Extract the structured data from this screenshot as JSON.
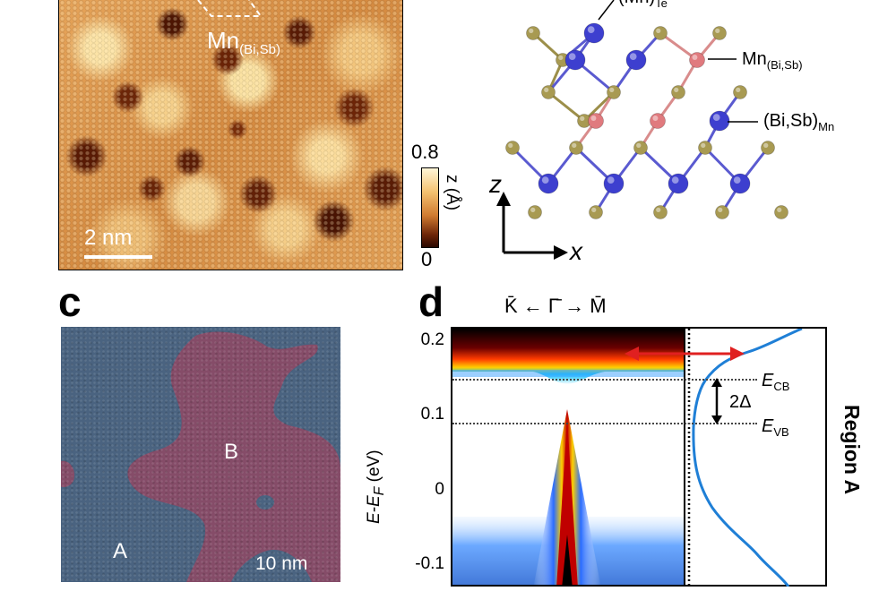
{
  "panel_b": {
    "defect_label": "Mn",
    "defect_label_sub": "(Bi,Sb)",
    "scale_bar": "2 nm",
    "colorbar_max": "0.8",
    "colorbar_min": "0",
    "colorbar_label": "z (Å)"
  },
  "crystal": {
    "label_top": "(Mn)",
    "label_top_sub": "Te",
    "label_mn": "Mn",
    "label_mn_sub": "(Bi,Sb)",
    "label_bisb": "(Bi,Sb)",
    "label_bisb_sub": "Mn",
    "axis_z": "z",
    "axis_x": "x",
    "colors": {
      "te": "#a89a52",
      "bisb": "#3d3fcf",
      "mn": "#e07a7e",
      "bond_blue": "#5a5ad0",
      "bond_olive": "#9c8f4a",
      "bond_pink": "#d98c8c"
    }
  },
  "panel_c": {
    "letter": "c",
    "region_a": "A",
    "region_b": "B",
    "scale_bar": "10 nm",
    "colors": {
      "region_a": "#4a6380",
      "region_b": "#8a4a66"
    }
  },
  "panel_d": {
    "letter": "d",
    "momentum_path": "K̄ ← Γ̄ → M̄",
    "y_axis_label": "E-E",
    "y_axis_label_sub": "F",
    "y_axis_unit": " (eV)",
    "y_ticks": [
      "0.2",
      "0.1",
      "0",
      "-0.1"
    ],
    "gap_label": "2Δ",
    "ecb_label": "E",
    "ecb_sub": "CB",
    "evb_label": "E",
    "evb_sub": "VB",
    "region_label": "Region A",
    "line_color": "#1f7fd6",
    "arrow_color": "#e02020"
  }
}
